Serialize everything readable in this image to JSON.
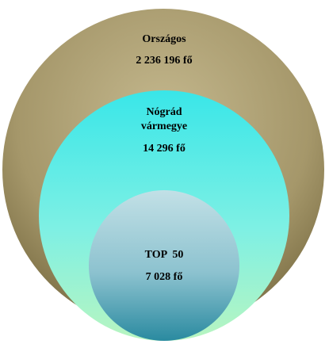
{
  "nodes": [
    {
      "lines": [
        "Országos",
        "2 236 196 fő"
      ]
    },
    {
      "lines": [
        "Nógrád",
        "vármegye",
        "14 296 fő"
      ]
    },
    {
      "lines": [
        "TOP  50",
        "7 028 fő"
      ]
    }
  ]
}
